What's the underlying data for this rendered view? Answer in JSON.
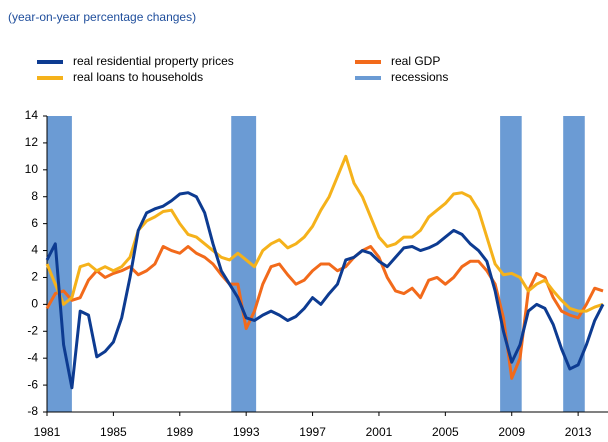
{
  "chart_data": {
    "type": "line",
    "subtitle": "(year-on-year percentage changes)",
    "x": [
      1981,
      1981.5,
      1982,
      1982.5,
      1983,
      1983.5,
      1984,
      1984.5,
      1985,
      1985.5,
      1986,
      1986.5,
      1987,
      1987.5,
      1988,
      1988.5,
      1989,
      1989.5,
      1990,
      1990.5,
      1991,
      1991.5,
      1992,
      1992.5,
      1993,
      1993.5,
      1994,
      1994.5,
      1995,
      1995.5,
      1996,
      1996.5,
      1997,
      1997.5,
      1998,
      1998.5,
      1999,
      1999.5,
      2000,
      2000.5,
      2001,
      2001.5,
      2002,
      2002.5,
      2003,
      2003.5,
      2004,
      2004.5,
      2005,
      2005.5,
      2006,
      2006.5,
      2007,
      2007.5,
      2008,
      2008.5,
      2009,
      2009.5,
      2010,
      2010.5,
      2011,
      2011.5,
      2012,
      2012.5,
      2013,
      2013.5,
      2014,
      2014.5
    ],
    "series": [
      {
        "name": "real residential property prices",
        "color": "#0d3b91",
        "values": [
          3.3,
          4.5,
          -3,
          -6.2,
          -0.5,
          -0.8,
          -3.9,
          -3.5,
          -2.8,
          -1,
          2,
          5.5,
          6.8,
          7.1,
          7.3,
          7.7,
          8.2,
          8.3,
          8,
          6.8,
          4.5,
          2.5,
          1.5,
          0.5,
          -1,
          -1.2,
          -0.8,
          -0.5,
          -0.8,
          -1.2,
          -0.9,
          -0.3,
          0.5,
          0,
          0.8,
          1.5,
          3.3,
          3.5,
          4,
          3.8,
          3.2,
          2.8,
          3.5,
          4.2,
          4.3,
          4,
          4.2,
          4.5,
          5,
          5.5,
          5.2,
          4.5,
          4,
          3.2,
          1,
          -2,
          -4.3,
          -3,
          -0.5,
          0,
          -0.3,
          -1.5,
          -3.3,
          -4.8,
          -4.5,
          -3,
          -1.2,
          0
        ]
      },
      {
        "name": "real GDP",
        "color": "#f26a1b",
        "values": [
          -0.3,
          0.8,
          1,
          0.3,
          0.5,
          1.8,
          2.5,
          2,
          2.3,
          2.5,
          2.8,
          2.2,
          2.5,
          3,
          4.3,
          4,
          3.8,
          4.3,
          3.8,
          3.5,
          3,
          2.2,
          1.5,
          1.5,
          -1.8,
          -0.5,
          1.5,
          2.8,
          3,
          2.2,
          1.5,
          1.8,
          2.5,
          3,
          3,
          2.5,
          2.8,
          3.5,
          4,
          4.3,
          3.5,
          2,
          1,
          0.8,
          1.2,
          0.5,
          1.8,
          2,
          1.5,
          2,
          2.8,
          3.2,
          3.2,
          2.5,
          1.5,
          -1,
          -5.5,
          -4,
          1,
          2.3,
          2,
          0.5,
          -0.5,
          -0.8,
          -1,
          0,
          1.2,
          1
        ]
      },
      {
        "name": "real loans to households",
        "color": "#f5b21b",
        "values": [
          3,
          1.5,
          0,
          0.5,
          2.8,
          3,
          2.5,
          2.8,
          2.5,
          2.8,
          3.5,
          5.5,
          6.2,
          6.5,
          6.9,
          7,
          6,
          5.2,
          5,
          4.5,
          4,
          3.5,
          3.3,
          3.8,
          3.3,
          2.8,
          4,
          4.5,
          4.8,
          4.2,
          4.5,
          5,
          5.8,
          7,
          8,
          9.5,
          11,
          9,
          8,
          6.5,
          5,
          4.3,
          4.5,
          5,
          5,
          5.5,
          6.5,
          7,
          7.5,
          8.2,
          8.3,
          8,
          7,
          5,
          3,
          2.2,
          2.3,
          2,
          1,
          1.5,
          1.8,
          1,
          0.3,
          -0.3,
          -0.5,
          -0.5,
          -0.2,
          0
        ]
      }
    ],
    "recessions": {
      "name": "recessions",
      "color": "#6b9bd4",
      "periods": [
        [
          1981,
          1982.5
        ],
        [
          1992.1,
          1993.6
        ],
        [
          2008.3,
          2009.6
        ],
        [
          2012.1,
          2013.4
        ]
      ]
    },
    "xlim": [
      1981,
      2014.8
    ],
    "xticks": [
      1981,
      1985,
      1989,
      1993,
      1997,
      2001,
      2005,
      2009,
      2013
    ],
    "ylim": [
      -8,
      14
    ],
    "yticks": [
      -8,
      -6,
      -4,
      -2,
      0,
      2,
      4,
      6,
      8,
      10,
      12,
      14
    ]
  }
}
